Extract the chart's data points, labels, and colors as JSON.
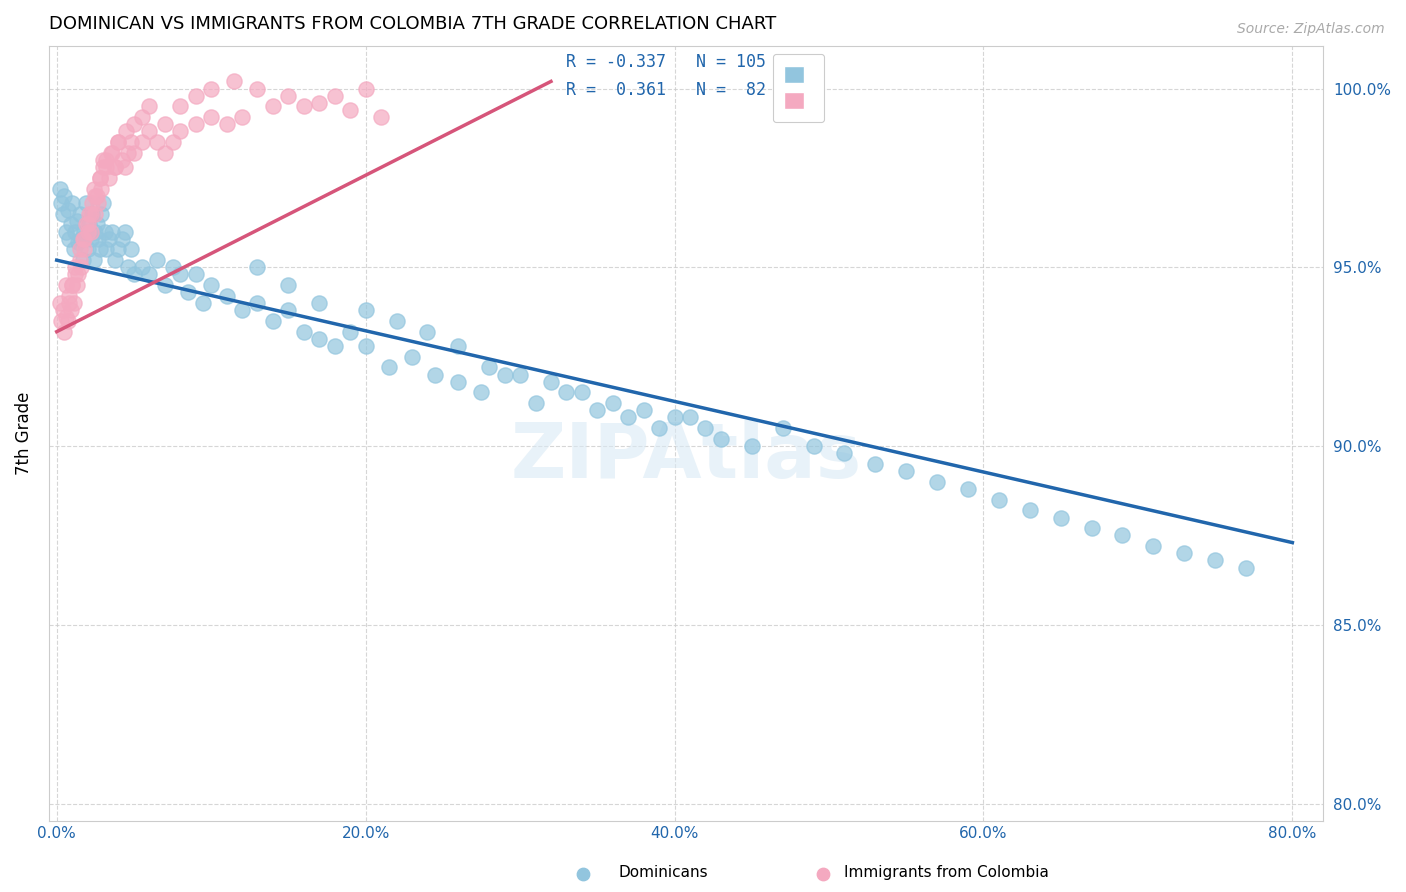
{
  "title": "DOMINICAN VS IMMIGRANTS FROM COLOMBIA 7TH GRADE CORRELATION CHART",
  "source": "Source: ZipAtlas.com",
  "xlabel_ticks": [
    "0.0%",
    "20.0%",
    "40.0%",
    "60.0%",
    "80.0%"
  ],
  "ylabel_ticks": [
    "80.0%",
    "85.0%",
    "90.0%",
    "95.0%",
    "100.0%"
  ],
  "xlim": [
    -0.005,
    0.82
  ],
  "ylim": [
    0.795,
    1.012
  ],
  "ylabel": "7th Grade",
  "legend_label1": "Dominicans",
  "legend_label2": "Immigrants from Colombia",
  "color_blue": "#92c5de",
  "color_pink": "#f4a9c0",
  "trendline_blue": "#2166ac",
  "trendline_pink": "#d6557a",
  "watermark": "ZIPAtlas",
  "title_fontsize": 13,
  "blue_trend_x": [
    0.0,
    0.8
  ],
  "blue_trend_y": [
    0.952,
    0.873
  ],
  "pink_trend_x": [
    0.0,
    0.32
  ],
  "pink_trend_y": [
    0.932,
    1.002
  ],
  "blue_x": [
    0.002,
    0.003,
    0.004,
    0.005,
    0.006,
    0.007,
    0.008,
    0.009,
    0.01,
    0.011,
    0.012,
    0.013,
    0.014,
    0.015,
    0.016,
    0.017,
    0.018,
    0.019,
    0.02,
    0.021,
    0.022,
    0.023,
    0.024,
    0.025,
    0.026,
    0.027,
    0.028,
    0.029,
    0.03,
    0.031,
    0.032,
    0.034,
    0.036,
    0.038,
    0.04,
    0.042,
    0.044,
    0.046,
    0.048,
    0.05,
    0.055,
    0.06,
    0.065,
    0.07,
    0.075,
    0.08,
    0.085,
    0.09,
    0.095,
    0.1,
    0.11,
    0.12,
    0.13,
    0.14,
    0.15,
    0.16,
    0.17,
    0.18,
    0.19,
    0.2,
    0.215,
    0.23,
    0.245,
    0.26,
    0.275,
    0.29,
    0.31,
    0.33,
    0.35,
    0.37,
    0.39,
    0.41,
    0.43,
    0.45,
    0.47,
    0.49,
    0.51,
    0.53,
    0.55,
    0.57,
    0.59,
    0.61,
    0.63,
    0.65,
    0.67,
    0.69,
    0.71,
    0.73,
    0.75,
    0.77,
    0.13,
    0.15,
    0.17,
    0.2,
    0.22,
    0.24,
    0.26,
    0.28,
    0.3,
    0.32,
    0.34,
    0.36,
    0.38,
    0.4,
    0.42
  ],
  "blue_y": [
    0.972,
    0.968,
    0.965,
    0.97,
    0.96,
    0.966,
    0.958,
    0.962,
    0.968,
    0.955,
    0.96,
    0.963,
    0.957,
    0.965,
    0.958,
    0.952,
    0.96,
    0.968,
    0.955,
    0.962,
    0.958,
    0.965,
    0.952,
    0.96,
    0.962,
    0.958,
    0.955,
    0.965,
    0.968,
    0.96,
    0.955,
    0.958,
    0.96,
    0.952,
    0.955,
    0.958,
    0.96,
    0.95,
    0.955,
    0.948,
    0.95,
    0.948,
    0.952,
    0.945,
    0.95,
    0.948,
    0.943,
    0.948,
    0.94,
    0.945,
    0.942,
    0.938,
    0.94,
    0.935,
    0.938,
    0.932,
    0.93,
    0.928,
    0.932,
    0.928,
    0.922,
    0.925,
    0.92,
    0.918,
    0.915,
    0.92,
    0.912,
    0.915,
    0.91,
    0.908,
    0.905,
    0.908,
    0.902,
    0.9,
    0.905,
    0.9,
    0.898,
    0.895,
    0.893,
    0.89,
    0.888,
    0.885,
    0.882,
    0.88,
    0.877,
    0.875,
    0.872,
    0.87,
    0.868,
    0.866,
    0.95,
    0.945,
    0.94,
    0.938,
    0.935,
    0.932,
    0.928,
    0.922,
    0.92,
    0.918,
    0.915,
    0.912,
    0.91,
    0.908,
    0.905
  ],
  "pink_x": [
    0.002,
    0.003,
    0.004,
    0.005,
    0.006,
    0.007,
    0.008,
    0.009,
    0.01,
    0.011,
    0.012,
    0.013,
    0.014,
    0.015,
    0.016,
    0.017,
    0.018,
    0.019,
    0.02,
    0.021,
    0.022,
    0.023,
    0.024,
    0.025,
    0.026,
    0.027,
    0.028,
    0.029,
    0.03,
    0.032,
    0.034,
    0.036,
    0.038,
    0.04,
    0.042,
    0.044,
    0.046,
    0.048,
    0.05,
    0.055,
    0.06,
    0.065,
    0.07,
    0.075,
    0.08,
    0.09,
    0.1,
    0.11,
    0.12,
    0.14,
    0.16,
    0.18,
    0.2,
    0.006,
    0.008,
    0.01,
    0.012,
    0.015,
    0.018,
    0.02,
    0.022,
    0.025,
    0.028,
    0.03,
    0.032,
    0.035,
    0.038,
    0.04,
    0.045,
    0.05,
    0.055,
    0.06,
    0.07,
    0.08,
    0.09,
    0.1,
    0.115,
    0.13,
    0.15,
    0.17,
    0.19,
    0.21
  ],
  "pink_y": [
    0.94,
    0.935,
    0.938,
    0.932,
    0.945,
    0.935,
    0.942,
    0.938,
    0.945,
    0.94,
    0.95,
    0.945,
    0.948,
    0.955,
    0.95,
    0.958,
    0.955,
    0.962,
    0.96,
    0.965,
    0.96,
    0.968,
    0.972,
    0.965,
    0.97,
    0.968,
    0.975,
    0.972,
    0.978,
    0.98,
    0.975,
    0.982,
    0.978,
    0.985,
    0.98,
    0.978,
    0.982,
    0.985,
    0.982,
    0.985,
    0.988,
    0.985,
    0.982,
    0.985,
    0.988,
    0.99,
    0.992,
    0.99,
    0.992,
    0.995,
    0.995,
    0.998,
    1.0,
    0.936,
    0.94,
    0.945,
    0.948,
    0.952,
    0.958,
    0.962,
    0.965,
    0.97,
    0.975,
    0.98,
    0.978,
    0.982,
    0.978,
    0.985,
    0.988,
    0.99,
    0.992,
    0.995,
    0.99,
    0.995,
    0.998,
    1.0,
    1.002,
    1.0,
    0.998,
    0.996,
    0.994,
    0.992
  ]
}
